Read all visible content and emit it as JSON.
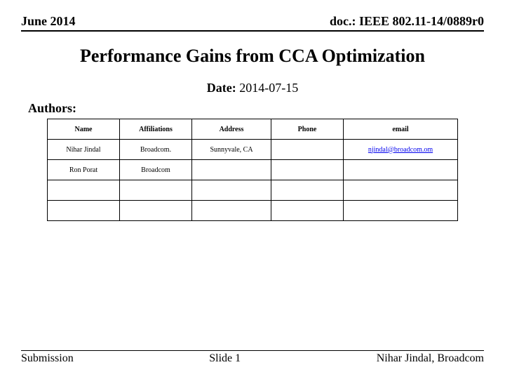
{
  "header": {
    "left": "June 2014",
    "right": "doc.: IEEE 802.11-14/0889r0"
  },
  "title": "Performance Gains from CCA Optimization",
  "date": {
    "label": "Date:",
    "value": "2014-07-15"
  },
  "authors_label": "Authors:",
  "authors_table": {
    "columns": [
      "Name",
      "Affiliations",
      "Address",
      "Phone",
      "email"
    ],
    "rows": [
      {
        "name": "Nihar Jindal",
        "affiliation": "Broadcom.",
        "address": "Sunnyvale, CA",
        "phone": "",
        "email": "njindal@broadcom.om"
      },
      {
        "name": "Ron Porat",
        "affiliation": "Broadcom",
        "address": "",
        "phone": "",
        "email": ""
      },
      {
        "name": "",
        "affiliation": "",
        "address": "",
        "phone": "",
        "email": ""
      },
      {
        "name": "",
        "affiliation": "",
        "address": "",
        "phone": "",
        "email": ""
      }
    ]
  },
  "footer": {
    "left": "Submission",
    "center": "Slide 1",
    "right": "Nihar Jindal, Broadcom"
  }
}
